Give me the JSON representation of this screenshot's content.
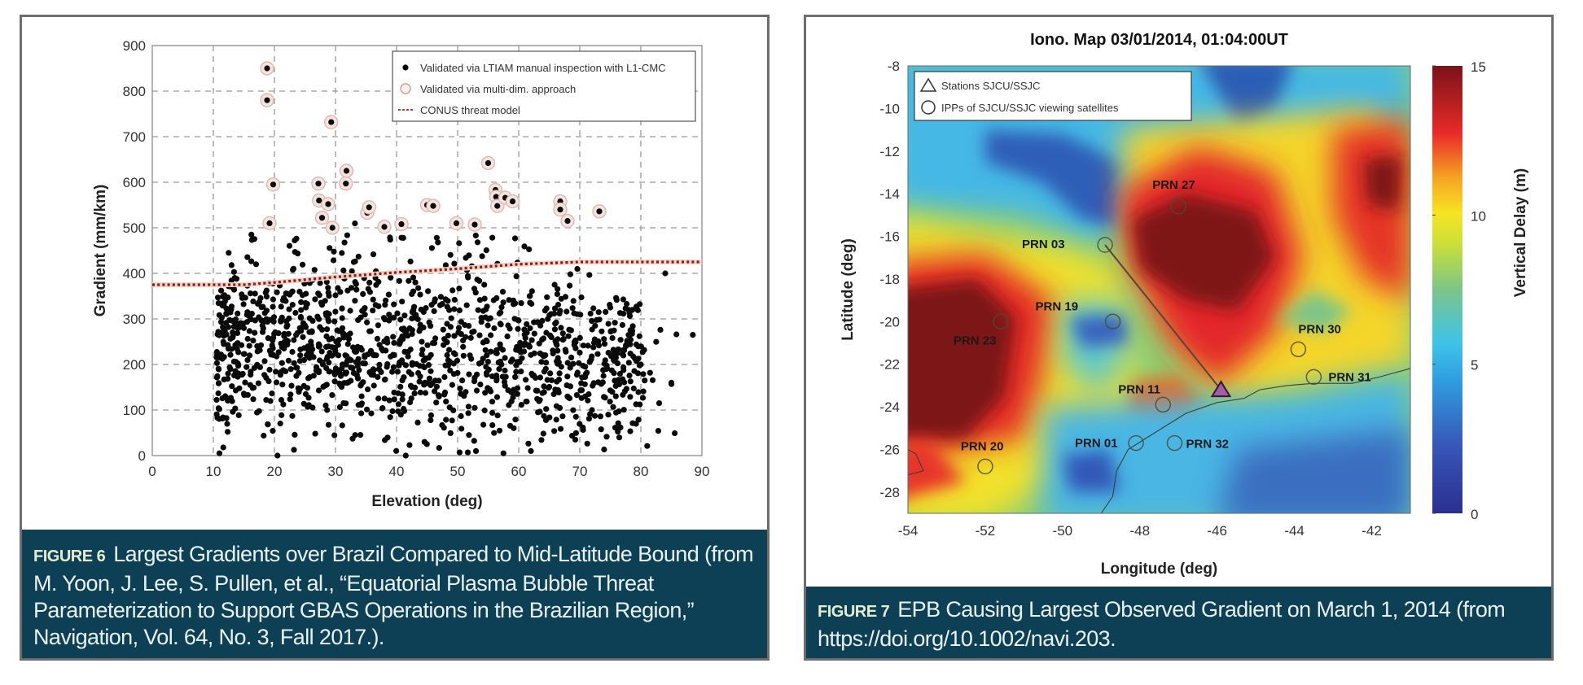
{
  "figure6": {
    "caption_label": "FIGURE 6",
    "caption_text": "Largest Gradients over Brazil Compared to Mid-Latitude Bound (from M. Yoon, J. Lee, S. Pullen, et al., “Equatorial Plasma Bubble Threat Parameterization to Support GBAS Operations in the Brazilian Region,” Navigation, Vol. 64, No. 3, Fall 2017.)."
  },
  "figure7": {
    "caption_label": "FIGURE 7",
    "caption_text": "EPB Causing Largest Observed Gradient on March 1, 2014 (from https://doi.org/10.1002/navi.203."
  },
  "chart_data": [
    {
      "type": "scatter",
      "title": "",
      "xlabel": "Elevation (deg)",
      "ylabel": "Gradient (mm/km)",
      "xlim": [
        0,
        90
      ],
      "ylim": [
        0,
        900
      ],
      "xticks": [
        0,
        10,
        20,
        30,
        40,
        50,
        60,
        70,
        80,
        90
      ],
      "yticks": [
        0,
        100,
        200,
        300,
        400,
        500,
        600,
        700,
        800,
        900
      ],
      "grid": true,
      "legend_position": "top-right",
      "legend": [
        {
          "label": "Validated via LTIAM manual inspection with L1-CMC",
          "marker": "black-dot"
        },
        {
          "label": "Validated via multi-dim. approach",
          "marker": "red-open-circle"
        },
        {
          "label": "CONUS threat model",
          "marker": "red-dotted-line"
        }
      ],
      "series": [
        {
          "name": "Validated via multi-dim. approach",
          "points": [
            [
              18.8,
              850
            ],
            [
              18.8,
              780
            ],
            [
              19.2,
              510
            ],
            [
              19.8,
              595
            ],
            [
              27.2,
              597
            ],
            [
              27.3,
              560
            ],
            [
              27.8,
              522
            ],
            [
              29.3,
              732
            ],
            [
              28.8,
              552
            ],
            [
              29.5,
              500
            ],
            [
              31.8,
              625
            ],
            [
              31.7,
              597
            ],
            [
              35.2,
              533
            ],
            [
              35.5,
              545
            ],
            [
              38.0,
              502
            ],
            [
              40.8,
              508
            ],
            [
              45.0,
              550
            ],
            [
              46.0,
              548
            ],
            [
              49.8,
              510
            ],
            [
              52.8,
              507
            ],
            [
              55.0,
              642
            ],
            [
              56.2,
              583
            ],
            [
              56.3,
              568
            ],
            [
              56.5,
              548
            ],
            [
              57.8,
              566
            ],
            [
              59.0,
              558
            ],
            [
              66.8,
              558
            ],
            [
              66.8,
              540
            ],
            [
              68.0,
              515
            ],
            [
              73.2,
              536
            ]
          ]
        },
        {
          "name": "Validated via LTIAM manual inspection with L1-CMC",
          "description": "~1500 points, dense cloud between elevation 10-90 deg, gradient mostly 50-450 mm/km, centered near (40, 220)",
          "sample_points": [
            [
              11,
              215
            ],
            [
              12.5,
              445
            ],
            [
              13.5,
              390
            ],
            [
              17,
              420
            ],
            [
              84,
              400
            ],
            [
              88.5,
              265
            ],
            [
              83,
              115
            ],
            [
              85,
              160
            ],
            [
              75,
              325
            ],
            [
              78,
              320
            ],
            [
              80,
              200
            ],
            [
              72,
              100
            ],
            [
              62,
              10
            ],
            [
              57.5,
              5
            ],
            [
              53,
              10
            ],
            [
              41.5,
              0
            ],
            [
              11,
              5
            ],
            [
              20.5,
              0
            ]
          ]
        },
        {
          "name": "CONUS threat model",
          "line": [
            [
              0,
              375
            ],
            [
              15,
              375
            ],
            [
              20,
              380
            ],
            [
              30,
              392
            ],
            [
              40,
              402
            ],
            [
              50,
              410
            ],
            [
              60,
              420
            ],
            [
              70,
              425
            ],
            [
              90,
              425
            ]
          ]
        }
      ]
    },
    {
      "type": "heatmap",
      "title": "Iono. Map 03/01/2014, 01:04:00UT",
      "xlabel": "Longitude (deg)",
      "ylabel": "Latitude (deg)",
      "xlim": [
        -54,
        -41
      ],
      "ylim": [
        -29,
        -8
      ],
      "xticks": [
        -54,
        -52,
        -50,
        -48,
        -46,
        -44,
        -42
      ],
      "yticks": [
        -8,
        -10,
        -12,
        -14,
        -16,
        -18,
        -20,
        -22,
        -24,
        -26,
        -28
      ],
      "colorbar": {
        "label": "Vertical Delay (m)",
        "range": [
          0,
          15
        ],
        "ticks": [
          0,
          5,
          10,
          15
        ],
        "colormap": "parula-jet"
      },
      "legend_position": "top-left",
      "legend": [
        {
          "label": "Stations SJCU/SSJC",
          "marker": "triangle"
        },
        {
          "label": "IPPs of SJCU/SSJC viewing satellites",
          "marker": "circle"
        }
      ],
      "station": {
        "lon": -45.9,
        "lat": -23.2
      },
      "ipps": [
        {
          "label": "PRN 27",
          "lon": -47.0,
          "lat": -14.6
        },
        {
          "label": "PRN 03",
          "lon": -48.9,
          "lat": -16.4
        },
        {
          "label": "PRN 19",
          "lon": -48.7,
          "lat": -20.0
        },
        {
          "label": "PRN 23",
          "lon": -51.6,
          "lat": -20.0
        },
        {
          "label": "PRN 30",
          "lon": -43.9,
          "lat": -21.3
        },
        {
          "label": "PRN 31",
          "lon": -43.5,
          "lat": -22.6
        },
        {
          "label": "PRN 11",
          "lon": -47.4,
          "lat": -23.9
        },
        {
          "label": "PRN 01",
          "lon": -48.1,
          "lat": -25.7
        },
        {
          "label": "PRN 32",
          "lon": -47.1,
          "lat": -25.7
        },
        {
          "label": "PRN 20",
          "lon": -52.0,
          "lat": -26.8
        }
      ],
      "regions": [
        {
          "name": "high-delay EPB core near PRN 27",
          "lon": -46.8,
          "lat": -16.5,
          "value": 15
        },
        {
          "name": "high-delay region west (PRN 23)",
          "lon": -53.0,
          "lat": -22.5,
          "value": 15
        },
        {
          "name": "high-delay northeast",
          "lon": -41.8,
          "lat": -13.5,
          "value": 15
        },
        {
          "name": "low-delay north",
          "lon": -50.0,
          "lat": -12.0,
          "value": 2
        },
        {
          "name": "low-delay pocket near PRN 19",
          "lon": -49.2,
          "lat": -20.3,
          "value": 3
        },
        {
          "name": "low-delay south",
          "lon": -44.0,
          "lat": -27.5,
          "value": 2
        }
      ]
    }
  ]
}
